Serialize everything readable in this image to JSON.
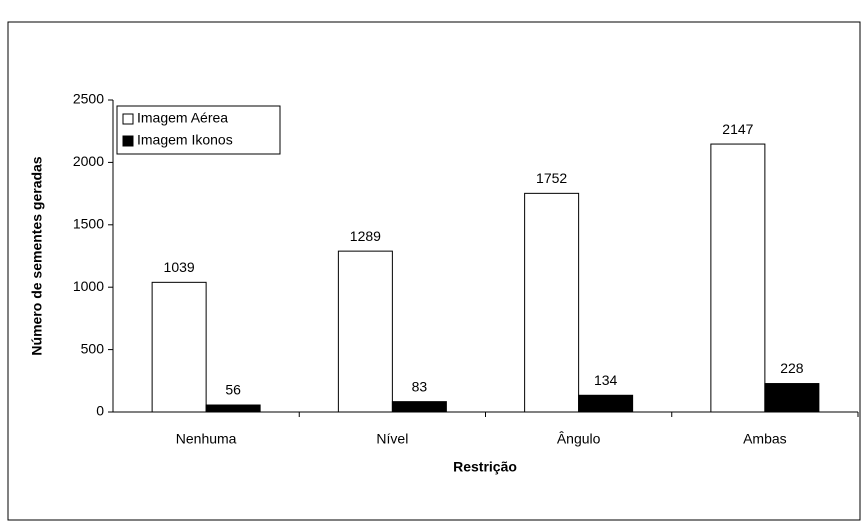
{
  "chart_data": {
    "type": "bar",
    "xlabel": "Restrição",
    "ylabel": "Número de sementes geradas",
    "categories": [
      "Nenhuma",
      "Nível",
      "Ângulo",
      "Ambas"
    ],
    "series": [
      {
        "name": "Imagem Aérea",
        "color": "#ffffff",
        "values": [
          1039,
          1289,
          1752,
          2147
        ]
      },
      {
        "name": "Imagem Ikonos",
        "color": "#000000",
        "values": [
          56,
          83,
          134,
          228
        ]
      }
    ],
    "ylim": [
      0,
      2500
    ],
    "yticks": [
      0,
      500,
      1000,
      1500,
      2000,
      2500
    ],
    "legend": "upper left"
  }
}
